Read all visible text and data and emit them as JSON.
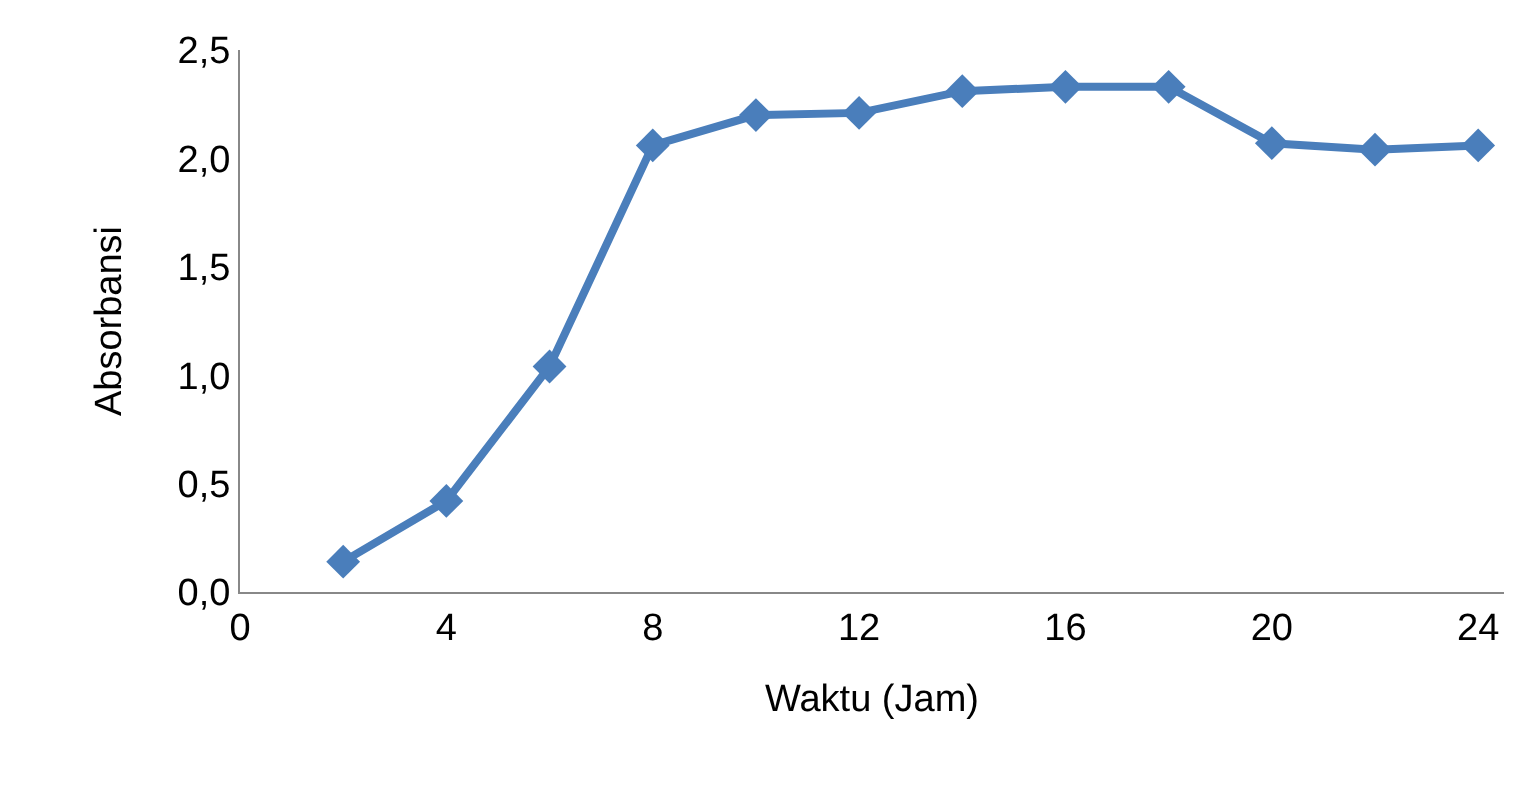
{
  "chart_data": {
    "type": "line",
    "xlabel": "Waktu (Jam)",
    "ylabel": "Absorbansi",
    "x": [
      2,
      4,
      6,
      8,
      10,
      12,
      14,
      16,
      18,
      20,
      22,
      24
    ],
    "series": [
      {
        "color": "#4a7ebb",
        "values": [
          0.14,
          0.42,
          1.04,
          2.06,
          2.2,
          2.21,
          2.31,
          2.33,
          2.33,
          2.07,
          2.04,
          2.06
        ]
      }
    ],
    "xlim": [
      0,
      24.5
    ],
    "xticks": [
      0,
      4,
      8,
      12,
      16,
      20,
      24
    ],
    "ylim": [
      0,
      2.5
    ],
    "yticks": [
      {
        "value": 0,
        "label": "0,0"
      },
      {
        "value": 0.5,
        "label": "0,5"
      },
      {
        "value": 1,
        "label": "1,0"
      },
      {
        "value": 1.5,
        "label": "1,5"
      },
      {
        "value": 2,
        "label": "2,0"
      },
      {
        "value": 2.5,
        "label": "2,5"
      }
    ],
    "grid": false,
    "marker": "diamond",
    "line_style": "solid"
  }
}
